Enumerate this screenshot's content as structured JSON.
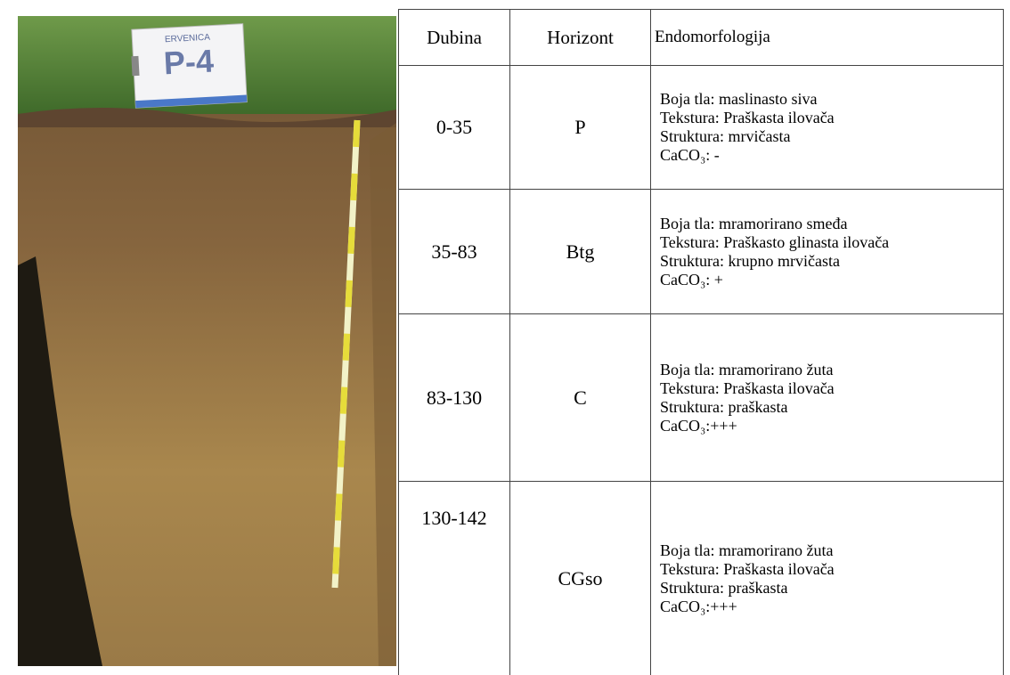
{
  "photo": {
    "sign": {
      "site": "ERVENICA",
      "profile": "P-4"
    }
  },
  "table": {
    "header": [
      "Dubina",
      "Horizont",
      "Endomorfologija"
    ],
    "rows": [
      {
        "depth": "0-35",
        "horizon": "P",
        "description": [
          "Boja tla: maslinasto siva",
          "Tekstura: Praškasta ilovača",
          "Struktura: mrvičasta",
          "CaCO₃: -"
        ]
      },
      {
        "depth": "35-83",
        "horizon": "Btg",
        "description": [
          "Boja tla: mramorirano smeđa",
          "Tekstura: Praškasto glinasta ilovača",
          "Struktura: krupno mrvičasta",
          "CaCO₃: +"
        ]
      },
      {
        "depth": "83-130",
        "horizon": "C",
        "description": [
          "Boja tla: mramorirano žuta",
          "Tekstura: Praškasta ilovača",
          "Struktura: praškasta",
          "CaCO₃:+++"
        ]
      },
      {
        "depth": "130-142",
        "horizon": "CGso",
        "description": [
          "Boja tla: mramorirano žuta",
          "Tekstura: Praškasta ilovača",
          "Struktura: praškasta",
          "CaCO₃:+++"
        ]
      }
    ]
  }
}
